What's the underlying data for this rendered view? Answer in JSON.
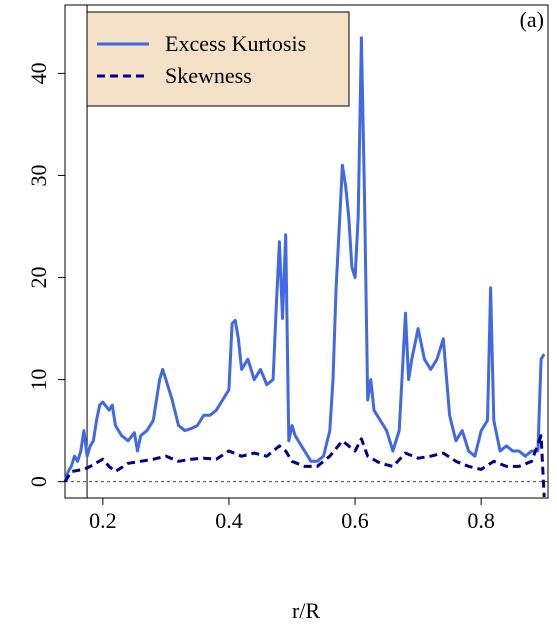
{
  "chart_data": {
    "type": "line",
    "xlabel": "r/R",
    "annotation": "(a)",
    "xlim": [
      0.14,
      0.906
    ],
    "ylim": [
      -1.6,
      46.7
    ],
    "xticks": [
      0.2,
      0.4,
      0.6,
      0.8
    ],
    "yticks": [
      0,
      10,
      20,
      30,
      40
    ],
    "vline": 0.175,
    "hline": 0,
    "legend": "top-left",
    "legend_fill": "#f5e1c8",
    "series": [
      {
        "name": "Excess Kurtosis",
        "color": "#4169e1",
        "dash": false,
        "x": [
          0.14,
          0.145,
          0.15,
          0.155,
          0.16,
          0.165,
          0.17,
          0.175,
          0.18,
          0.185,
          0.19,
          0.195,
          0.2,
          0.21,
          0.215,
          0.22,
          0.23,
          0.24,
          0.25,
          0.255,
          0.26,
          0.27,
          0.28,
          0.29,
          0.295,
          0.3,
          0.31,
          0.32,
          0.33,
          0.34,
          0.35,
          0.36,
          0.37,
          0.38,
          0.39,
          0.4,
          0.405,
          0.41,
          0.415,
          0.42,
          0.43,
          0.44,
          0.45,
          0.46,
          0.47,
          0.475,
          0.48,
          0.485,
          0.49,
          0.495,
          0.5,
          0.505,
          0.51,
          0.52,
          0.53,
          0.54,
          0.55,
          0.56,
          0.565,
          0.57,
          0.575,
          0.58,
          0.585,
          0.59,
          0.595,
          0.6,
          0.605,
          0.61,
          0.615,
          0.62,
          0.625,
          0.63,
          0.64,
          0.65,
          0.66,
          0.67,
          0.68,
          0.685,
          0.69,
          0.7,
          0.71,
          0.72,
          0.73,
          0.74,
          0.75,
          0.76,
          0.77,
          0.78,
          0.79,
          0.8,
          0.81,
          0.815,
          0.82,
          0.83,
          0.84,
          0.85,
          0.86,
          0.87,
          0.88,
          0.89,
          0.895,
          0.9
        ],
        "values": [
          0,
          1,
          1.5,
          2.5,
          2,
          3,
          5,
          2.5,
          3.5,
          4,
          6,
          7.5,
          7.8,
          7,
          7.5,
          5.5,
          4.5,
          4,
          4.8,
          3,
          4.5,
          5,
          6,
          10,
          11,
          10,
          8,
          5.5,
          5,
          5.2,
          5.5,
          6.5,
          6.5,
          7,
          8,
          9,
          15.5,
          15.8,
          14,
          11,
          12,
          10,
          11,
          9.5,
          10,
          17,
          23.5,
          16,
          24.2,
          4,
          5.5,
          4.5,
          4,
          3,
          2,
          2,
          2.5,
          5,
          10,
          19,
          25,
          31,
          29,
          26,
          21,
          20,
          26,
          43.5,
          28,
          8,
          10,
          7,
          6,
          5,
          3,
          5,
          16.5,
          10,
          12,
          15,
          12,
          11,
          12,
          14,
          6.5,
          4,
          5,
          3,
          2.5,
          5,
          6,
          19,
          6,
          3,
          3.5,
          3,
          3,
          2.5,
          3,
          3,
          12,
          12.5
        ]
      },
      {
        "name": "Skewness",
        "color": "#00008b",
        "dash": true,
        "x": [
          0.14,
          0.15,
          0.17,
          0.18,
          0.2,
          0.21,
          0.22,
          0.24,
          0.26,
          0.28,
          0.3,
          0.32,
          0.34,
          0.36,
          0.38,
          0.4,
          0.42,
          0.44,
          0.46,
          0.48,
          0.49,
          0.5,
          0.52,
          0.54,
          0.56,
          0.58,
          0.6,
          0.61,
          0.62,
          0.64,
          0.66,
          0.68,
          0.7,
          0.72,
          0.74,
          0.76,
          0.78,
          0.8,
          0.82,
          0.84,
          0.86,
          0.88,
          0.895,
          0.9
        ],
        "values": [
          0,
          1,
          1.2,
          1.5,
          2.2,
          1.5,
          1,
          1.8,
          2,
          2.2,
          2.5,
          2,
          2.2,
          2.3,
          2.2,
          3,
          2.5,
          2.8,
          2.5,
          3.5,
          3,
          2,
          1.5,
          1.5,
          2.5,
          4,
          3,
          4.2,
          2.5,
          1.8,
          1.5,
          2.8,
          2.3,
          2.5,
          2.8,
          2,
          1.5,
          1.2,
          2,
          1.5,
          1.5,
          2,
          4.5,
          -1.5
        ]
      }
    ]
  }
}
